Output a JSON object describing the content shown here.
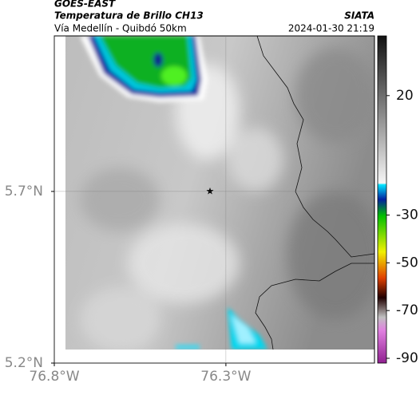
{
  "header": {
    "title": "GOES-EAST",
    "subtitle": "Temperatura de Brillo CH13",
    "source": "SIATA",
    "route": "Vía Medellín - Quibdó 50km",
    "timestamp": "2024-01-30 21:19"
  },
  "map": {
    "xlim": [
      -76.8,
      -75.867
    ],
    "ylim": [
      5.2,
      6.153
    ],
    "xticks": [
      {
        "value": -76.8,
        "label": "76.8°W"
      },
      {
        "value": -76.3,
        "label": "76.3°W"
      }
    ],
    "yticks": [
      {
        "value": 5.2,
        "label": "5.2°N"
      },
      {
        "value": 5.7,
        "label": "5.7°N"
      }
    ],
    "grid": true
  },
  "colorbar": {
    "range": [
      -92,
      45
    ],
    "ticks": [
      20,
      -30,
      -50,
      -70,
      -90
    ]
  }
}
